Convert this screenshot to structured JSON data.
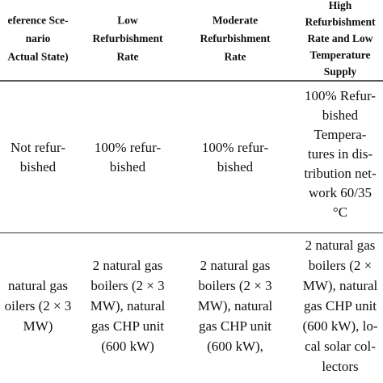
{
  "table": {
    "header": [
      [
        "eference Sce-",
        "nario",
        "Actual State)"
      ],
      [
        "Low",
        "Refurbishment",
        "Rate"
      ],
      [
        "Moderate",
        "Refurbishment",
        "Rate"
      ],
      [
        "High",
        "Refurbishment",
        "Rate and Low",
        "Temperature",
        "Supply"
      ]
    ],
    "rows": [
      [
        [
          "Not refur-",
          "bished"
        ],
        [
          "100% refur-",
          "bished"
        ],
        [
          "100% refur-",
          "bished"
        ],
        [
          "100% Refur-",
          "bished",
          "Tempera-",
          "tures in dis-",
          "tribution net-",
          "work 60/35",
          "°C"
        ]
      ],
      [
        [
          "natural gas",
          "oilers (2 × 3",
          "MW)"
        ],
        [
          "2 natural gas",
          "boilers (2 × 3",
          "MW), natural",
          "gas CHP unit",
          "(600 kW)"
        ],
        [
          "2 natural gas",
          "boilers (2 × 3",
          "MW), natural",
          "gas CHP unit",
          "(600 kW),"
        ],
        [
          "2 natural gas",
          "boilers (2 ×",
          "MW), natural",
          "gas CHP unit",
          "(600 kW), lo-",
          "cal solar col-",
          "lectors"
        ]
      ]
    ]
  }
}
